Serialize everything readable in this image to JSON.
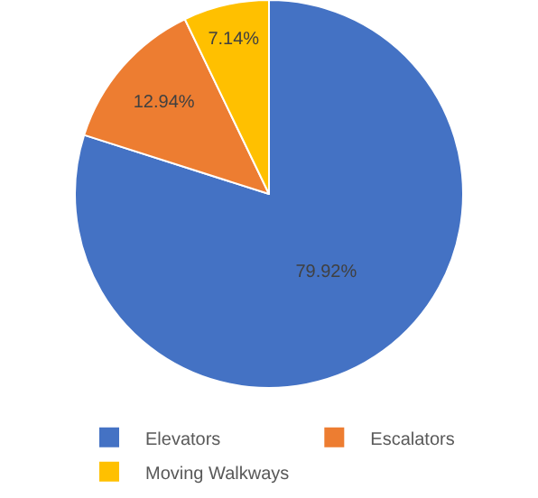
{
  "chart_data": {
    "type": "pie",
    "categories": [
      "Elevators",
      "Escalators",
      "Moving Walkways"
    ],
    "values": [
      79.92,
      12.94,
      7.14
    ],
    "colors": [
      "#4472c4",
      "#ed7d31",
      "#ffc000"
    ],
    "value_labels": [
      "79.92%",
      "12.94%",
      "7.14%"
    ],
    "legend": "bottom"
  }
}
